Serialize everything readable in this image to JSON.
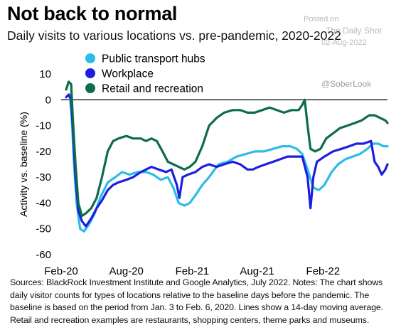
{
  "header": {
    "title": "Not back to normal",
    "subtitle": "Daily visits to various locations vs. pre-pandemic, 2020-2022"
  },
  "watermark": {
    "posted": "Posted on",
    "brand": "The Daily Shot",
    "date": "02-Aug-2022",
    "handle": "@SoberLook"
  },
  "footer": {
    "notes": "Sources: BlackRock Investment Institute and Google Analytics, July 2022. Notes: The chart shows daily visitor counts for types of locations relative to the baseline days before the pandemic. The baseline is based on the period from Jan. 3 to Feb. 6, 2020. Lines show a 14-day moving average. Retail and recreation examples are restaurants, shopping centers, theme parks and museums."
  },
  "chart_data": {
    "type": "line",
    "title": "Not back to normal",
    "ylabel": "Activity vs. baseline (%)",
    "xlabel": "",
    "ylim": [
      -60,
      10
    ],
    "yticks": [
      10,
      0,
      -10,
      -20,
      -30,
      -40,
      -50,
      -60
    ],
    "x_range": [
      "2020-02-01",
      "2022-07-31"
    ],
    "xticks": [
      {
        "label": "Feb-20",
        "date": "2020-02-01"
      },
      {
        "label": "Aug-20",
        "date": "2020-08-01"
      },
      {
        "label": "Feb-21",
        "date": "2021-02-01"
      },
      {
        "label": "Aug-21",
        "date": "2021-08-01"
      },
      {
        "label": "Feb-22",
        "date": "2022-02-01"
      }
    ],
    "grid": false,
    "legend_position": "top-left",
    "series": [
      {
        "name": "Public transport hubs",
        "color": "#2dbbe8",
        "points": [
          [
            "2020-02-15",
            1
          ],
          [
            "2020-02-25",
            2
          ],
          [
            "2020-03-02",
            -8
          ],
          [
            "2020-03-08",
            -25
          ],
          [
            "2020-03-15",
            -40
          ],
          [
            "2020-03-25",
            -50
          ],
          [
            "2020-04-05",
            -51
          ],
          [
            "2020-04-20",
            -48
          ],
          [
            "2020-05-05",
            -44
          ],
          [
            "2020-05-20",
            -38
          ],
          [
            "2020-06-10",
            -32
          ],
          [
            "2020-07-01",
            -30
          ],
          [
            "2020-07-20",
            -28
          ],
          [
            "2020-08-10",
            -29
          ],
          [
            "2020-09-01",
            -28
          ],
          [
            "2020-09-25",
            -28
          ],
          [
            "2020-10-15",
            -29
          ],
          [
            "2020-11-05",
            -31
          ],
          [
            "2020-11-25",
            -30
          ],
          [
            "2020-12-10",
            -34
          ],
          [
            "2020-12-25",
            -40
          ],
          [
            "2021-01-10",
            -41
          ],
          [
            "2021-01-25",
            -40
          ],
          [
            "2021-02-10",
            -37
          ],
          [
            "2021-03-01",
            -33
          ],
          [
            "2021-03-20",
            -30
          ],
          [
            "2021-04-15",
            -25
          ],
          [
            "2021-05-10",
            -24
          ],
          [
            "2021-06-05",
            -22
          ],
          [
            "2021-07-01",
            -21
          ],
          [
            "2021-07-25",
            -20
          ],
          [
            "2021-08-20",
            -20
          ],
          [
            "2021-09-15",
            -19
          ],
          [
            "2021-10-10",
            -18
          ],
          [
            "2021-11-01",
            -18
          ],
          [
            "2021-11-20",
            -19
          ],
          [
            "2021-12-05",
            -21
          ],
          [
            "2021-12-20",
            -27
          ],
          [
            "2022-01-05",
            -34
          ],
          [
            "2022-01-20",
            -35
          ],
          [
            "2022-02-05",
            -33
          ],
          [
            "2022-02-25",
            -28
          ],
          [
            "2022-03-15",
            -25
          ],
          [
            "2022-04-05",
            -23
          ],
          [
            "2022-04-25",
            -22
          ],
          [
            "2022-05-15",
            -21
          ],
          [
            "2022-06-05",
            -19
          ],
          [
            "2022-06-20",
            -17
          ],
          [
            "2022-07-05",
            -17
          ],
          [
            "2022-07-20",
            -18
          ],
          [
            "2022-07-31",
            -18
          ]
        ]
      },
      {
        "name": "Workplace",
        "color": "#1c1ee0",
        "points": [
          [
            "2020-02-15",
            1
          ],
          [
            "2020-02-22",
            2
          ],
          [
            "2020-02-29",
            0
          ],
          [
            "2020-03-05",
            -12
          ],
          [
            "2020-03-12",
            -30
          ],
          [
            "2020-03-20",
            -43
          ],
          [
            "2020-03-30",
            -47
          ],
          [
            "2020-04-10",
            -49
          ],
          [
            "2020-04-25",
            -46
          ],
          [
            "2020-05-10",
            -42
          ],
          [
            "2020-05-25",
            -39
          ],
          [
            "2020-06-10",
            -35
          ],
          [
            "2020-06-25",
            -33
          ],
          [
            "2020-07-10",
            -32
          ],
          [
            "2020-08-01",
            -31
          ],
          [
            "2020-08-20",
            -30
          ],
          [
            "2020-09-10",
            -28
          ],
          [
            "2020-09-25",
            -27
          ],
          [
            "2020-10-10",
            -26
          ],
          [
            "2020-10-30",
            -27
          ],
          [
            "2020-11-20",
            -28
          ],
          [
            "2020-12-05",
            -27
          ],
          [
            "2020-12-20",
            -33
          ],
          [
            "2020-12-27",
            -38
          ],
          [
            "2021-01-05",
            -30
          ],
          [
            "2021-01-20",
            -29
          ],
          [
            "2021-02-10",
            -28
          ],
          [
            "2021-03-01",
            -26
          ],
          [
            "2021-03-20",
            -25
          ],
          [
            "2021-04-10",
            -26
          ],
          [
            "2021-05-01",
            -25
          ],
          [
            "2021-05-25",
            -24
          ],
          [
            "2021-06-15",
            -25
          ],
          [
            "2021-07-05",
            -27
          ],
          [
            "2021-07-20",
            -27
          ],
          [
            "2021-08-05",
            -26
          ],
          [
            "2021-08-25",
            -25
          ],
          [
            "2021-09-15",
            -24
          ],
          [
            "2021-10-05",
            -23
          ],
          [
            "2021-10-25",
            -22
          ],
          [
            "2021-11-15",
            -22
          ],
          [
            "2021-12-05",
            -22
          ],
          [
            "2021-12-20",
            -30
          ],
          [
            "2021-12-28",
            -42
          ],
          [
            "2022-01-05",
            -30
          ],
          [
            "2022-01-15",
            -24
          ],
          [
            "2022-02-05",
            -22
          ],
          [
            "2022-03-01",
            -20
          ],
          [
            "2022-03-25",
            -19
          ],
          [
            "2022-04-15",
            -18
          ],
          [
            "2022-05-05",
            -17
          ],
          [
            "2022-05-25",
            -17
          ],
          [
            "2022-06-15",
            -16
          ],
          [
            "2022-06-25",
            -24
          ],
          [
            "2022-07-05",
            -26
          ],
          [
            "2022-07-15",
            -29
          ],
          [
            "2022-07-25",
            -27
          ],
          [
            "2022-07-31",
            -25
          ]
        ]
      },
      {
        "name": "Retail and recreation",
        "color": "#0e6b4c",
        "points": [
          [
            "2020-02-15",
            4
          ],
          [
            "2020-02-22",
            7
          ],
          [
            "2020-02-29",
            6
          ],
          [
            "2020-03-05",
            -8
          ],
          [
            "2020-03-12",
            -25
          ],
          [
            "2020-03-20",
            -40
          ],
          [
            "2020-03-30",
            -45
          ],
          [
            "2020-04-10",
            -44
          ],
          [
            "2020-04-25",
            -42
          ],
          [
            "2020-05-10",
            -38
          ],
          [
            "2020-05-25",
            -30
          ],
          [
            "2020-06-10",
            -20
          ],
          [
            "2020-06-25",
            -16
          ],
          [
            "2020-07-10",
            -15
          ],
          [
            "2020-08-01",
            -14
          ],
          [
            "2020-08-20",
            -15
          ],
          [
            "2020-09-10",
            -15
          ],
          [
            "2020-09-25",
            -16
          ],
          [
            "2020-10-10",
            -15
          ],
          [
            "2020-10-25",
            -16
          ],
          [
            "2020-11-10",
            -20
          ],
          [
            "2020-11-25",
            -24
          ],
          [
            "2020-12-10",
            -25
          ],
          [
            "2020-12-25",
            -26
          ],
          [
            "2021-01-10",
            -27
          ],
          [
            "2021-01-25",
            -26
          ],
          [
            "2021-02-10",
            -24
          ],
          [
            "2021-03-01",
            -18
          ],
          [
            "2021-03-20",
            -10
          ],
          [
            "2021-04-10",
            -7
          ],
          [
            "2021-05-01",
            -5
          ],
          [
            "2021-05-25",
            -4
          ],
          [
            "2021-06-15",
            -4
          ],
          [
            "2021-07-05",
            -5
          ],
          [
            "2021-07-25",
            -5
          ],
          [
            "2021-08-15",
            -4
          ],
          [
            "2021-09-05",
            -3
          ],
          [
            "2021-09-25",
            -4
          ],
          [
            "2021-10-15",
            -5
          ],
          [
            "2021-11-05",
            -4
          ],
          [
            "2021-11-25",
            -4
          ],
          [
            "2021-12-05",
            -2
          ],
          [
            "2021-12-12",
            0
          ],
          [
            "2021-12-20",
            -10
          ],
          [
            "2021-12-28",
            -19
          ],
          [
            "2022-01-10",
            -20
          ],
          [
            "2022-01-25",
            -19
          ],
          [
            "2022-02-10",
            -15
          ],
          [
            "2022-03-01",
            -13
          ],
          [
            "2022-03-20",
            -11
          ],
          [
            "2022-04-10",
            -10
          ],
          [
            "2022-05-01",
            -9
          ],
          [
            "2022-05-20",
            -8
          ],
          [
            "2022-06-10",
            -6
          ],
          [
            "2022-06-25",
            -6
          ],
          [
            "2022-07-10",
            -7
          ],
          [
            "2022-07-25",
            -8
          ],
          [
            "2022-07-31",
            -9
          ]
        ]
      }
    ]
  }
}
